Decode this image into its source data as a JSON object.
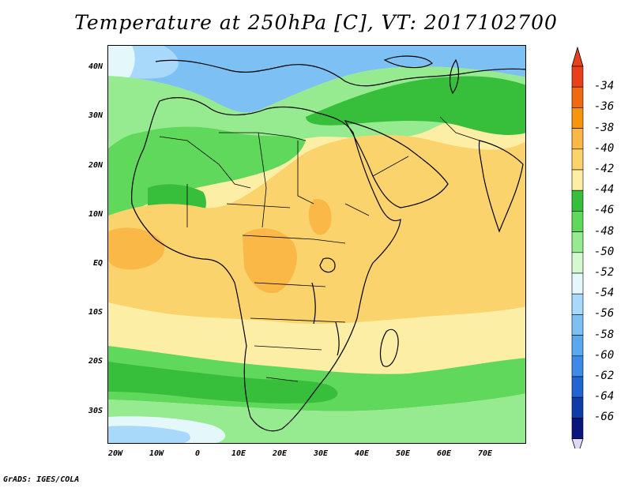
{
  "title": "Temperature at 250hPa [C], VT: 2017102700",
  "footer": "GrADS: IGES/COLA",
  "lat_labels": [
    "40N",
    "30N",
    "20N",
    "10N",
    "EQ",
    "10S",
    "20S",
    "30S"
  ],
  "lon_labels": [
    "20W",
    "10W",
    "0",
    "10E",
    "20E",
    "30E",
    "40E",
    "50E",
    "60E",
    "70E"
  ],
  "colorbar": {
    "labels": [
      "-34",
      "-36",
      "-38",
      "-40",
      "-42",
      "-44",
      "-46",
      "-48",
      "-50",
      "-52",
      "-54",
      "-56",
      "-58",
      "-60",
      "-62",
      "-64",
      "-66"
    ],
    "colors": [
      "#e8401a",
      "#f06a12",
      "#f7950f",
      "#fab846",
      "#fbd36c",
      "#fdeea6",
      "#37be3b",
      "#5fd85b",
      "#96eb90",
      "#d4f8cf",
      "#e4f8fc",
      "#a8d8fa",
      "#7cc0f4",
      "#5aa8ee",
      "#3d8ae8",
      "#2165d2",
      "#0d3ea8",
      "#0a177a"
    ],
    "top_arrow_color": "#e8401a",
    "bottom_arrow_color": "#ded8f7"
  },
  "map_colors": {
    "blue": "#7cc0f4",
    "light_blue": "#a8d8fa",
    "pale_blue": "#e4f8fc",
    "light_green": "#96eb90",
    "green": "#5fd85b",
    "dark_green": "#37be3b",
    "pale_yellow": "#fdeea6",
    "yellow": "#fbd36c",
    "orange": "#fab846"
  }
}
